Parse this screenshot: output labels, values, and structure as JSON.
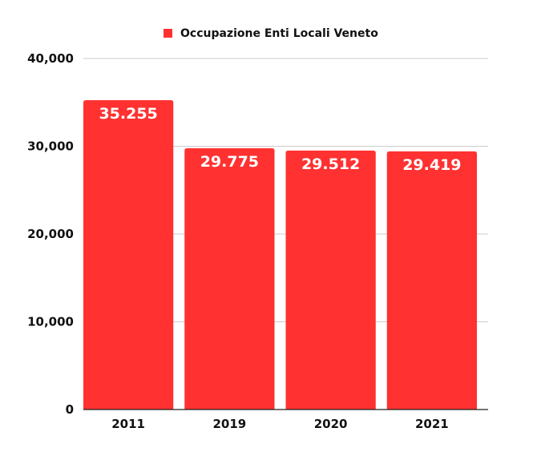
{
  "chart_data": {
    "type": "bar",
    "title": "",
    "xlabel": "",
    "ylabel": "",
    "categories": [
      "2011",
      "2019",
      "2020",
      "2021"
    ],
    "series": [
      {
        "name": "Occupazione Enti Locali Veneto",
        "values": [
          35255,
          29775,
          29512,
          29419
        ],
        "data_labels": [
          "35.255",
          "29.775",
          "29.512",
          "29.419"
        ],
        "color": "#ff3131"
      }
    ],
    "ylim": [
      0,
      40000
    ],
    "yticks": [
      0,
      10000,
      20000,
      30000,
      40000
    ],
    "ytick_labels": [
      "0",
      "10,000",
      "20,000",
      "30,000",
      "40,000"
    ],
    "grid": true,
    "legend_position": "top"
  }
}
